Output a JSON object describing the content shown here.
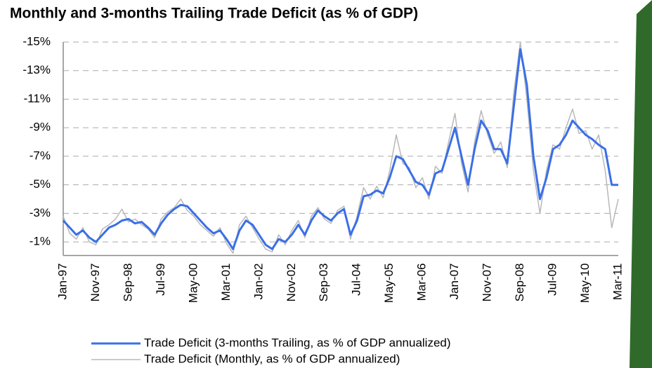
{
  "chart_data": {
    "type": "line",
    "title": "Monthly and 3-months Trailing Trade Deficit (as % of GDP)",
    "categories": [
      "Jan-97",
      null,
      null,
      null,
      null,
      "Nov-97",
      null,
      null,
      null,
      null,
      "Sep-98",
      null,
      null,
      null,
      null,
      "Jul-99",
      null,
      null,
      null,
      null,
      "May-00",
      null,
      null,
      null,
      null,
      "Mar-01",
      null,
      null,
      null,
      null,
      "Jan-02",
      null,
      null,
      null,
      null,
      "Nov-02",
      null,
      null,
      null,
      null,
      "Sep-03",
      null,
      null,
      null,
      null,
      "Jul-04",
      null,
      null,
      null,
      null,
      "May-05",
      null,
      null,
      null,
      null,
      "Mar-06",
      null,
      null,
      null,
      null,
      "Jan-07",
      null,
      null,
      null,
      null,
      "Nov-07",
      null,
      null,
      null,
      null,
      "Sep-08",
      null,
      null,
      null,
      null,
      "Jul-09",
      null,
      null,
      null,
      null,
      "May-10",
      null,
      null,
      null,
      null,
      "Mar-11"
    ],
    "series": [
      {
        "name": "Trade Deficit (3-months Trailing, as % of GDP annualized)",
        "color": "#3a6fe8",
        "values": [
          -2.5,
          -2.0,
          -1.5,
          -1.8,
          -1.3,
          -1.0,
          -1.5,
          -2.0,
          -2.2,
          -2.5,
          -2.6,
          -2.3,
          -2.4,
          -2.0,
          -1.5,
          -2.3,
          -2.9,
          -3.3,
          -3.6,
          -3.5,
          -3.0,
          -2.5,
          -2.0,
          -1.6,
          -1.8,
          -1.2,
          -0.5,
          -1.8,
          -2.5,
          -2.2,
          -1.5,
          -0.8,
          -0.5,
          -1.2,
          -1.0,
          -1.5,
          -2.2,
          -1.5,
          -2.5,
          -3.2,
          -2.8,
          -2.5,
          -3.0,
          -3.3,
          -1.5,
          -2.5,
          -4.2,
          -4.3,
          -4.6,
          -4.4,
          -5.5,
          -7.0,
          -6.8,
          -6.0,
          -5.2,
          -5.0,
          -4.3,
          -5.8,
          -6.0,
          -7.5,
          -9.0,
          -7.0,
          -5.0,
          -7.5,
          -9.5,
          -8.8,
          -7.5,
          -7.5,
          -6.5,
          -10.5,
          -14.5,
          -12.0,
          -7.0,
          -4.0,
          -5.5,
          -7.5,
          -7.8,
          -8.5,
          -9.5,
          -9.0,
          -8.5,
          -8.2,
          -7.8,
          -7.5,
          -5.0,
          -5.0
        ]
      },
      {
        "name": "Trade Deficit (Monthly, as % of GDP annualized)",
        "color": "#b8b8b8",
        "values": [
          -2.8,
          -1.6,
          -1.2,
          -2.0,
          -1.0,
          -0.8,
          -1.9,
          -2.2,
          -2.6,
          -3.3,
          -2.4,
          -2.6,
          -2.2,
          -1.9,
          -1.3,
          -2.6,
          -3.1,
          -3.4,
          -4.0,
          -3.2,
          -2.8,
          -2.2,
          -1.8,
          -1.4,
          -2.0,
          -0.9,
          -0.2,
          -2.2,
          -2.8,
          -2.0,
          -1.2,
          -0.5,
          -0.3,
          -1.5,
          -0.8,
          -1.8,
          -2.5,
          -1.3,
          -2.8,
          -3.4,
          -2.6,
          -2.3,
          -3.2,
          -3.5,
          -1.2,
          -2.8,
          -4.8,
          -4.0,
          -4.9,
          -4.1,
          -6.0,
          -8.5,
          -6.5,
          -6.2,
          -4.8,
          -5.5,
          -4.0,
          -6.3,
          -5.8,
          -8.0,
          -10.0,
          -6.5,
          -4.5,
          -8.0,
          -10.2,
          -8.5,
          -7.2,
          -8.0,
          -6.2,
          -11.5,
          -15.0,
          -11.0,
          -6.0,
          -3.0,
          -6.0,
          -7.8,
          -7.5,
          -9.0,
          -10.3,
          -8.6,
          -8.8,
          -7.5,
          -8.5,
          -6.0,
          -2.0,
          -4.0
        ]
      }
    ],
    "ylim": [
      0,
      -15
    ],
    "yticks": [
      {
        "value": -1,
        "label": "-1%"
      },
      {
        "value": -3,
        "label": "-3%"
      },
      {
        "value": -5,
        "label": "-5%"
      },
      {
        "value": -7,
        "label": "-7%"
      },
      {
        "value": -9,
        "label": "-9%"
      },
      {
        "value": -11,
        "label": "-11%"
      },
      {
        "value": -13,
        "label": "-13%"
      },
      {
        "value": -15,
        "label": "-15%"
      }
    ],
    "grid": true,
    "legend": "bottom"
  }
}
